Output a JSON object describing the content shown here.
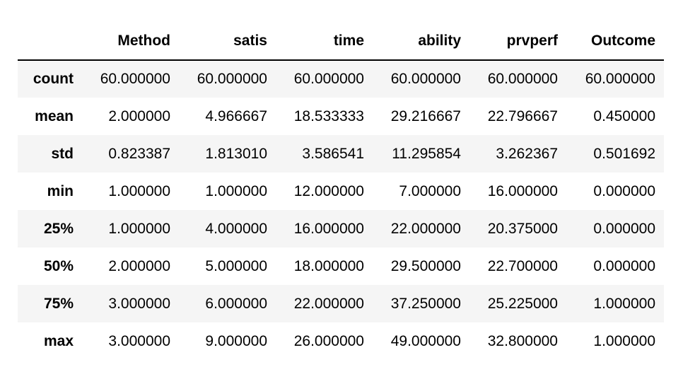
{
  "table": {
    "columns": [
      "Method",
      "satis",
      "time",
      "ability",
      "prvperf",
      "Outcome"
    ],
    "rows": [
      {
        "label": "count",
        "values": [
          "60.000000",
          "60.000000",
          "60.000000",
          "60.000000",
          "60.000000",
          "60.000000"
        ]
      },
      {
        "label": "mean",
        "values": [
          "2.000000",
          "4.966667",
          "18.533333",
          "29.216667",
          "22.796667",
          "0.450000"
        ]
      },
      {
        "label": "std",
        "values": [
          "0.823387",
          "1.813010",
          "3.586541",
          "11.295854",
          "3.262367",
          "0.501692"
        ]
      },
      {
        "label": "min",
        "values": [
          "1.000000",
          "1.000000",
          "12.000000",
          "7.000000",
          "16.000000",
          "0.000000"
        ]
      },
      {
        "label": "25%",
        "values": [
          "1.000000",
          "4.000000",
          "16.000000",
          "22.000000",
          "20.375000",
          "0.000000"
        ]
      },
      {
        "label": "50%",
        "values": [
          "2.000000",
          "5.000000",
          "18.000000",
          "29.500000",
          "22.700000",
          "0.000000"
        ]
      },
      {
        "label": "75%",
        "values": [
          "3.000000",
          "6.000000",
          "22.000000",
          "37.250000",
          "25.225000",
          "1.000000"
        ]
      },
      {
        "label": "max",
        "values": [
          "3.000000",
          "9.000000",
          "26.000000",
          "49.000000",
          "32.800000",
          "1.000000"
        ]
      }
    ]
  },
  "colors": {
    "stripe": "#f5f5f5",
    "background": "#ffffff",
    "rule": "#000000"
  }
}
